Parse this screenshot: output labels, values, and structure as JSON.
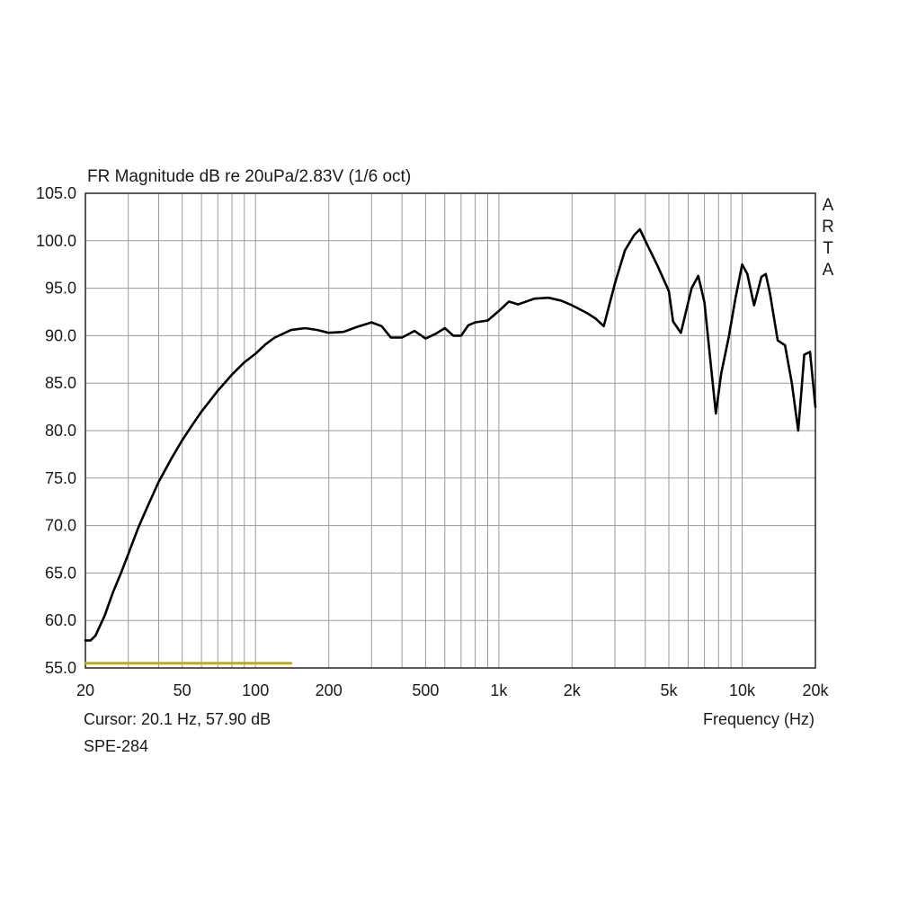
{
  "chart_data": {
    "type": "line",
    "title": "FR Magnitude dB re 20uPa/2.83V (1/6 oct)",
    "xlabel": "Frequency (Hz)",
    "ylabel": "",
    "x_scale": "log",
    "xlim": [
      20,
      20000
    ],
    "ylim": [
      55,
      105
    ],
    "grid": true,
    "x_ticks": [
      {
        "value": 20,
        "label": "20"
      },
      {
        "value": 50,
        "label": "50"
      },
      {
        "value": 100,
        "label": "100"
      },
      {
        "value": 200,
        "label": "200"
      },
      {
        "value": 500,
        "label": "500"
      },
      {
        "value": 1000,
        "label": "1k"
      },
      {
        "value": 2000,
        "label": "2k"
      },
      {
        "value": 5000,
        "label": "5k"
      },
      {
        "value": 10000,
        "label": "10k"
      },
      {
        "value": 20000,
        "label": "20k"
      }
    ],
    "y_ticks": [
      {
        "value": 105,
        "label": "105.0"
      },
      {
        "value": 100,
        "label": "100.0"
      },
      {
        "value": 95,
        "label": "95.0"
      },
      {
        "value": 90,
        "label": "90.0"
      },
      {
        "value": 85,
        "label": "85.0"
      },
      {
        "value": 80,
        "label": "80.0"
      },
      {
        "value": 75,
        "label": "75.0"
      },
      {
        "value": 70,
        "label": "70.0"
      },
      {
        "value": 65,
        "label": "65.0"
      },
      {
        "value": 60,
        "label": "60.0"
      },
      {
        "value": 55,
        "label": "55.0"
      }
    ],
    "series": [
      {
        "color": "#000000",
        "x": [
          20,
          21,
          22,
          24,
          26,
          28,
          30,
          33,
          36,
          40,
          45,
          50,
          55,
          60,
          70,
          80,
          90,
          100,
          110,
          120,
          140,
          160,
          180,
          200,
          230,
          260,
          300,
          330,
          360,
          400,
          450,
          500,
          550,
          600,
          650,
          700,
          750,
          800,
          900,
          1000,
          1100,
          1200,
          1400,
          1600,
          1800,
          2000,
          2300,
          2500,
          2700,
          3000,
          3300,
          3600,
          3800,
          4000,
          4500,
          5000,
          5200,
          5600,
          6200,
          6600,
          7000,
          7500,
          7800,
          8200,
          8800,
          9400,
          10000,
          10500,
          11200,
          12000,
          12500,
          13000,
          14000,
          15000,
          16000,
          17000,
          17500,
          18000,
          19000,
          20000
        ],
        "values": [
          57.9,
          57.9,
          58.4,
          60.5,
          63.0,
          65.0,
          67.0,
          69.8,
          72.0,
          74.6,
          77.0,
          79.0,
          80.6,
          82.0,
          84.2,
          85.9,
          87.2,
          88.1,
          89.1,
          89.8,
          90.6,
          90.8,
          90.6,
          90.3,
          90.4,
          90.9,
          91.4,
          91.0,
          89.8,
          89.8,
          90.5,
          89.7,
          90.2,
          90.8,
          90.0,
          90.0,
          91.1,
          91.4,
          91.6,
          92.6,
          93.6,
          93.3,
          93.9,
          94.0,
          93.7,
          93.2,
          92.4,
          91.8,
          91.0,
          95.5,
          99.0,
          100.6,
          101.2,
          100.0,
          97.3,
          94.7,
          91.5,
          90.3,
          95.0,
          96.3,
          93.5,
          86.0,
          81.8,
          86.0,
          89.8,
          94.0,
          97.5,
          96.5,
          93.2,
          96.2,
          96.5,
          94.5,
          89.5,
          89.0,
          85.0,
          80.0,
          84.0,
          88.0,
          88.3,
          82.5
        ]
      },
      {
        "color": "#b8ac28",
        "x": [
          20,
          140
        ],
        "values": [
          55.5,
          55.5
        ]
      }
    ]
  },
  "top_right_label": "ARTA",
  "cursor_text": "Cursor: 20.1 Hz, 57.90 dB",
  "footer_name": "SPE-284"
}
